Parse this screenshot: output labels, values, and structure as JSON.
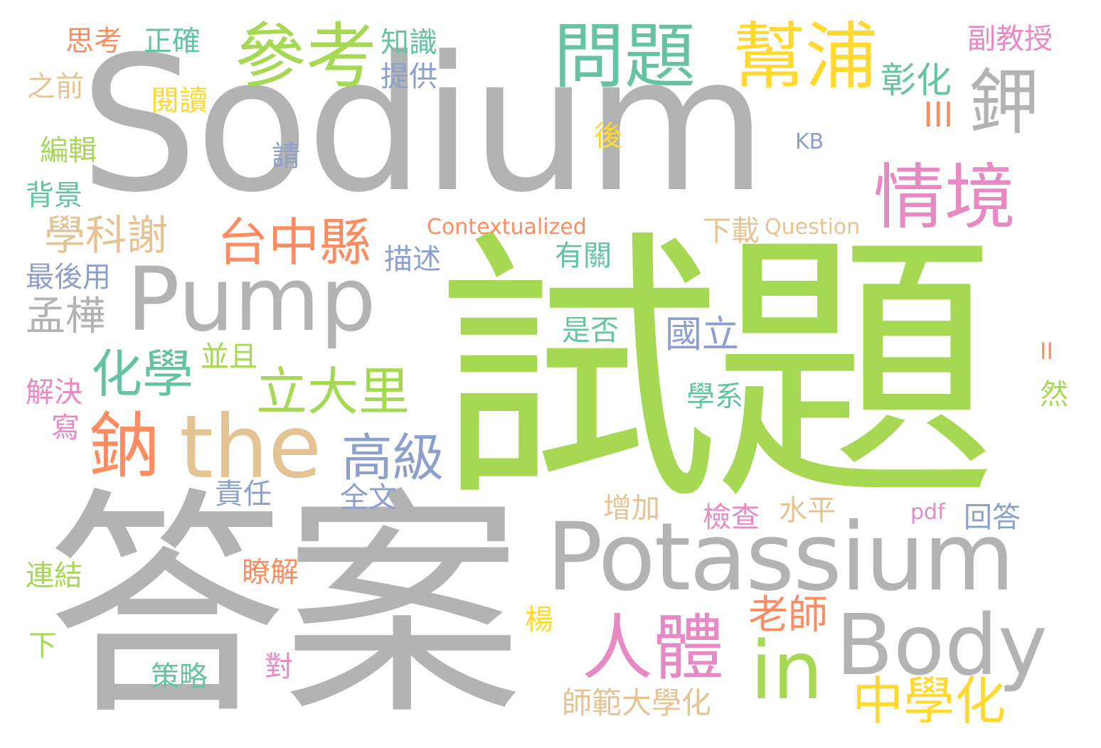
{
  "palette": {
    "gray": "#b3b3b3",
    "green": "#a6d854",
    "teal": "#66c2a5",
    "orange": "#fc8d62",
    "pink": "#e78ac3",
    "blue": "#8da0cb",
    "yellow": "#ffd92f",
    "tan": "#e5c494"
  },
  "words": {
    "sodium": "Sodium",
    "shiti": "試題",
    "daan": "答案",
    "potassium": "Potassium",
    "pump": "Pump",
    "the": "the",
    "body": "Body",
    "in": "in",
    "wenti": "問題",
    "bangpu": "幫浦",
    "cankao": "參考",
    "qingjing": "情境",
    "jia": "鉀",
    "na": "鈉",
    "renti": "人體",
    "taizhongxian": "台中縣",
    "huaxue": "化學",
    "lidali": "立大里",
    "gaoji": "高級",
    "zhongxuehua": "中學化",
    "xuekexie": "學科謝",
    "mengye": "孟樺",
    "laoshi": "老師",
    "zhanghua": "彰化",
    "guoli": "國立",
    "shifandaxuehua": "師範大學化",
    "contextualized": "Contextualized",
    "question": "Question",
    "fujiaoshou": "副教授",
    "zhishi": "知識",
    "tigong": "提供",
    "sikao": "思考",
    "zhengque": "正確",
    "zhiqian": "之前",
    "yuedu": "閱讀",
    "bianji": "編輯",
    "beijing": "背景",
    "qing": "請",
    "hou": "後",
    "kb": "KB",
    "iii": "III",
    "xiazai": "下載",
    "youguan": "有關",
    "miaoshu": "描述",
    "zuihouyong": "最後用",
    "shifou": "是否",
    "bingqie": "並且",
    "jiejue": "解決",
    "xie": "寫",
    "xuexi": "學系",
    "zeren": "責任",
    "quanwen": "全文",
    "zengjia": "增加",
    "jiancha": "檢查",
    "shuiping": "水平",
    "pdf": "pdf",
    "huida": "回答",
    "ii": "II",
    "ran": "然",
    "lianjie": "連結",
    "liaojie": "瞭解",
    "yang": "楊",
    "xia": "下",
    "dui": "對",
    "celue": "策略"
  }
}
